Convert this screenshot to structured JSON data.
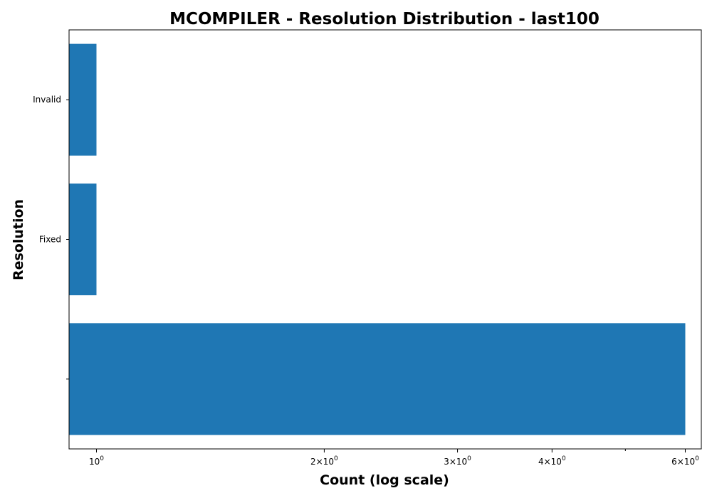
{
  "chart_data": {
    "type": "bar",
    "orientation": "horizontal",
    "title": "MCOMPILER - Resolution Distribution - last100",
    "xlabel": "Count (log scale)",
    "ylabel": "Resolution",
    "x_scale": "log",
    "xlim": [
      0.92,
      6.3
    ],
    "categories": [
      "",
      "Fixed",
      "Invalid"
    ],
    "values": [
      6,
      1,
      1
    ],
    "bar_color": "#1f77b4",
    "grid": false,
    "legend": "none",
    "x_ticks": [
      {
        "value": 1,
        "base": "10",
        "exp": "0"
      },
      {
        "value": 2,
        "base": "2×10",
        "exp": "0"
      },
      {
        "value": 3,
        "base": "3×10",
        "exp": "0"
      },
      {
        "value": 4,
        "base": "4×10",
        "exp": "0"
      },
      {
        "value": 6,
        "base": "6×10",
        "exp": "0"
      }
    ],
    "x_minor_ticks": [
      5
    ]
  }
}
